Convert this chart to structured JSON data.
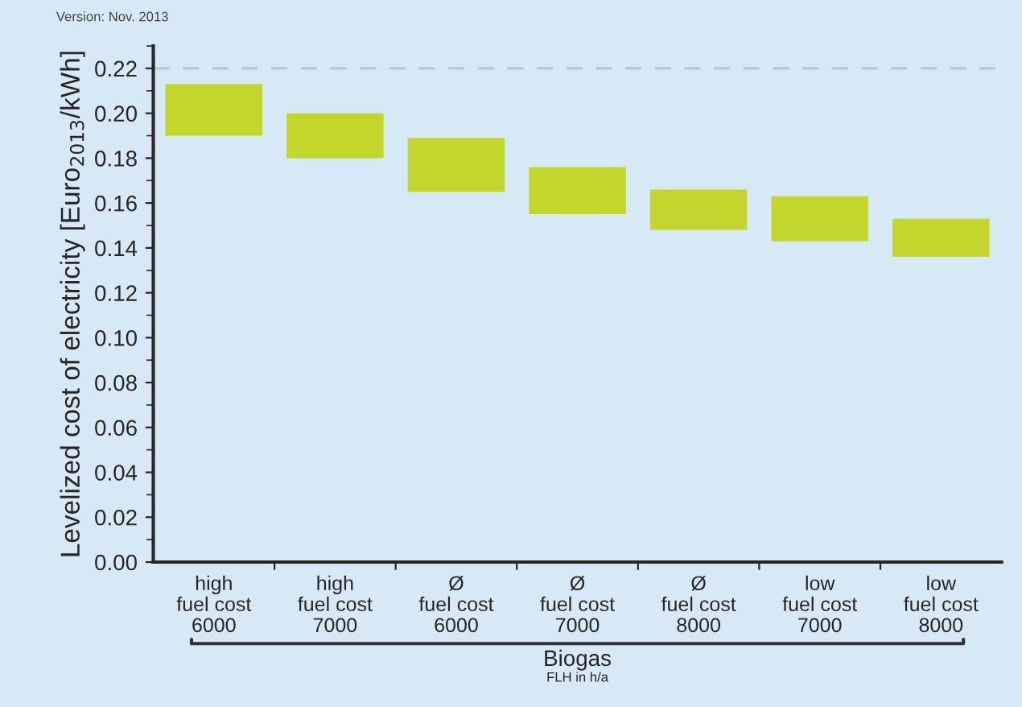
{
  "chart_data": {
    "type": "bar",
    "ylabel": "Levelized cost of electricity [Euro$_{2013}$/kWh]",
    "categories": [
      "high\nfuel cost\n6000",
      "high\nfuel cost\n7000",
      "Ø\nfuel cost\n6000",
      "Ø\nfuel cost\n7000",
      "Ø\nfuel cost\n8000",
      "low\nfuel cost\n7000",
      "low\nfuel cost\n8000"
    ],
    "base": [
      0.19,
      0.18,
      0.165,
      0.155,
      0.148,
      0.143,
      0.136
    ],
    "values": [
      0.023,
      0.02,
      0.024,
      0.021,
      0.018,
      0.02,
      0.017
    ],
    "color": "#c3d62b",
    "ylim": [
      0,
      0.23
    ],
    "yticks": [
      {
        "value": 0,
        "label": "0.00"
      },
      {
        "value": 0.02,
        "label": "0.02"
      },
      {
        "value": 0.04,
        "label": "0.04"
      },
      {
        "value": 0.06,
        "label": "0.06"
      },
      {
        "value": 0.08,
        "label": "0.08"
      },
      {
        "value": 0.1,
        "label": "0.10"
      },
      {
        "value": 0.12,
        "label": "0.12"
      },
      {
        "value": 0.14,
        "label": "0.14"
      },
      {
        "value": 0.16,
        "label": "0.16"
      },
      {
        "value": 0.18,
        "label": "0.18"
      },
      {
        "value": 0.2,
        "label": "0.20"
      },
      {
        "value": 0.22,
        "label": "0.22"
      }
    ],
    "ref_lines": [
      {
        "axis": "y",
        "value": 0.22,
        "color": "#b8c8d4",
        "line_style": "dashed"
      }
    ],
    "grid": false,
    "annotations": [
      "Version: Nov. 2013",
      "Biogas",
      "FLH in h/a"
    ]
  }
}
